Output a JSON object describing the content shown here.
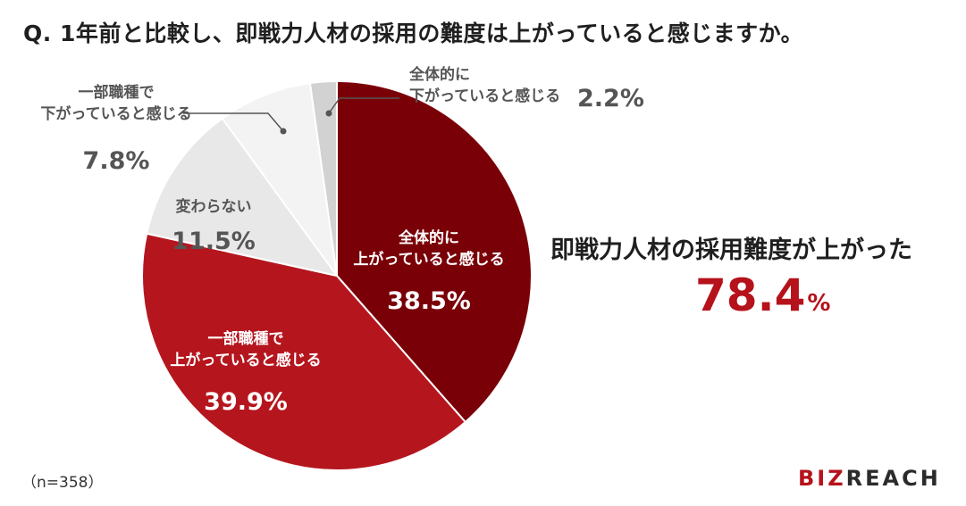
{
  "question": "Q. 1年前と比較し、即戦力人材の採用の難度は上がっていると感じますか。",
  "summary": {
    "label": "即戦力人材の採用難度が上がった",
    "value": "78.4",
    "unit": "%"
  },
  "sample_size": "（n=358）",
  "logo": {
    "part1": "BIZ",
    "part2": "REACH"
  },
  "colors": {
    "dark_red": "#7a0008",
    "red": "#b5161e",
    "light_gray": "#e8e8e8",
    "lighter_gray": "#f3f3f3",
    "mid_gray": "#d2d2d2",
    "accent": "#b5121b"
  },
  "chart_data": {
    "type": "pie",
    "start": "12 o'clock, clockwise",
    "slices": [
      {
        "label_lines": [
          "全体的に",
          "上がっていると感じる"
        ],
        "value": 38.5,
        "display": "38.5%",
        "color": "#7a0008"
      },
      {
        "label_lines": [
          "一部職種で",
          "上がっていると感じる"
        ],
        "value": 39.9,
        "display": "39.9%",
        "color": "#b5161e"
      },
      {
        "label_lines": [
          "変わらない"
        ],
        "value": 11.5,
        "display": "11.5%",
        "color": "#e8e8e8"
      },
      {
        "label_lines": [
          "一部職種で",
          "下がっていると感じる"
        ],
        "value": 7.8,
        "display": "7.8%",
        "color": "#f3f3f3"
      },
      {
        "label_lines": [
          "全体的に",
          "下がっていると感じる"
        ],
        "value": 2.2,
        "display": "2.2%",
        "color": "#d2d2d2"
      }
    ]
  }
}
